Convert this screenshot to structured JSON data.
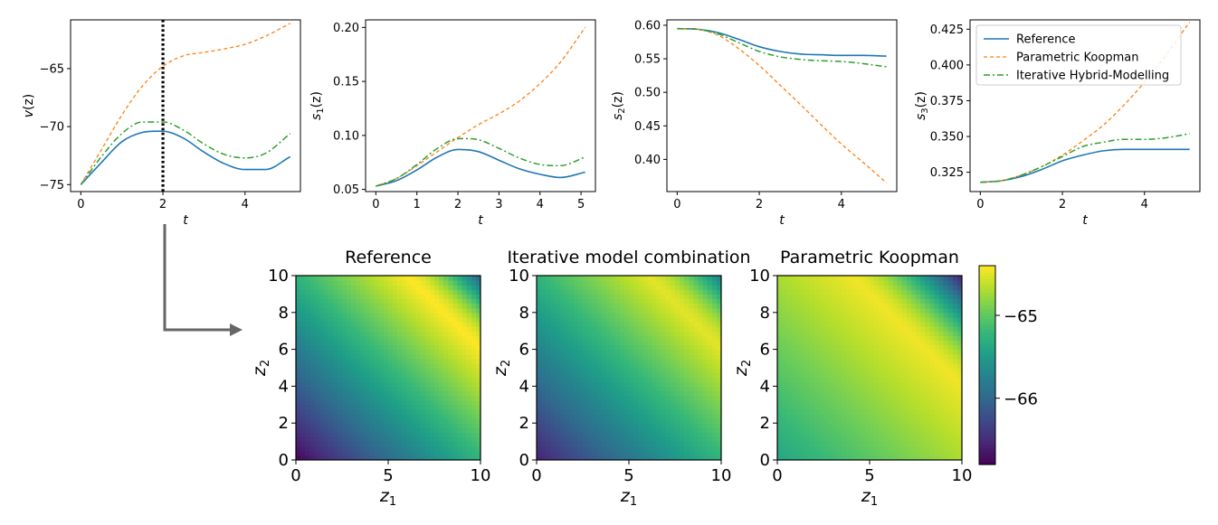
{
  "chart_data": [
    {
      "type": "line",
      "xlabel": "t",
      "ylabel_base": "v",
      "ylabel_arg": "(z)",
      "ylabel_sub": "",
      "xlim": [
        -0.25,
        5.35
      ],
      "ylim": [
        -75.6,
        -60.8
      ],
      "xticks": [
        0,
        2,
        4
      ],
      "yticks": [
        -75,
        -70,
        -65
      ],
      "vline_x": 2.0,
      "series": [
        {
          "name": "Reference",
          "x": [
            0,
            0.5,
            1,
            1.5,
            2,
            2.5,
            3,
            3.5,
            4,
            4.5,
            5.1
          ],
          "values": [
            -75,
            -73.1,
            -71.3,
            -70.5,
            -70.4,
            -71.0,
            -72.2,
            -73.2,
            -73.7,
            -73.7,
            -72.6
          ]
        },
        {
          "name": "Parametric Koopman",
          "x": [
            0,
            0.5,
            1,
            1.5,
            2,
            2.5,
            3,
            3.5,
            4,
            4.5,
            5.1
          ],
          "values": [
            -75,
            -72.0,
            -69.0,
            -66.5,
            -64.8,
            -63.9,
            -63.6,
            -63.3,
            -62.9,
            -62.2,
            -61.1
          ]
        },
        {
          "name": "Iterative Hybrid-Modelling",
          "x": [
            0,
            0.5,
            1,
            1.5,
            2,
            2.5,
            3,
            3.5,
            4,
            4.5,
            5.1
          ],
          "values": [
            -75,
            -72.6,
            -70.6,
            -69.6,
            -69.6,
            -70.3,
            -71.5,
            -72.4,
            -72.7,
            -72.3,
            -70.6
          ]
        }
      ]
    },
    {
      "type": "line",
      "xlabel": "t",
      "ylabel_base": "s",
      "ylabel_arg": "(z)",
      "ylabel_sub": "1",
      "xlim": [
        -0.25,
        5.35
      ],
      "ylim": [
        0.048,
        0.207
      ],
      "xticks": [
        0,
        1,
        2,
        3,
        4,
        5
      ],
      "yticks": [
        0.05,
        0.1,
        0.15,
        0.2
      ],
      "ytick_labels": [
        "0.05",
        "0.10",
        "0.15",
        "0.20"
      ],
      "series": [
        {
          "name": "Reference",
          "x": [
            0,
            0.5,
            1,
            1.5,
            2,
            2.5,
            3,
            3.5,
            4,
            4.5,
            5.1
          ],
          "values": [
            0.053,
            0.058,
            0.068,
            0.08,
            0.087,
            0.085,
            0.077,
            0.069,
            0.064,
            0.061,
            0.066
          ]
        },
        {
          "name": "Parametric Koopman",
          "x": [
            0,
            0.5,
            1,
            1.5,
            2,
            2.5,
            3,
            3.5,
            4,
            4.5,
            5.1
          ],
          "values": [
            0.053,
            0.06,
            0.072,
            0.085,
            0.098,
            0.11,
            0.12,
            0.132,
            0.148,
            0.168,
            0.2
          ]
        },
        {
          "name": "Iterative Hybrid-Modelling",
          "x": [
            0,
            0.5,
            1,
            1.5,
            2,
            2.5,
            3,
            3.5,
            4,
            4.5,
            5.1
          ],
          "values": [
            0.053,
            0.06,
            0.073,
            0.088,
            0.097,
            0.096,
            0.088,
            0.079,
            0.073,
            0.072,
            0.08
          ]
        }
      ]
    },
    {
      "type": "line",
      "xlabel": "t",
      "ylabel_base": "s",
      "ylabel_arg": "(z)",
      "ylabel_sub": "2",
      "xlim": [
        -0.25,
        5.35
      ],
      "ylim": [
        0.352,
        0.608
      ],
      "xticks": [
        0,
        2,
        4
      ],
      "yticks": [
        0.4,
        0.45,
        0.5,
        0.55,
        0.6
      ],
      "ytick_labels": [
        "0.40",
        "0.45",
        "0.50",
        "0.55",
        "0.60"
      ],
      "series": [
        {
          "name": "Reference",
          "x": [
            0,
            0.5,
            1,
            1.5,
            2,
            2.5,
            3,
            3.5,
            4,
            4.5,
            5.1
          ],
          "values": [
            0.595,
            0.594,
            0.589,
            0.579,
            0.568,
            0.561,
            0.557,
            0.556,
            0.555,
            0.555,
            0.554
          ]
        },
        {
          "name": "Parametric Koopman",
          "x": [
            0,
            0.5,
            1,
            1.5,
            2,
            2.5,
            3,
            3.5,
            4,
            4.5,
            5.1
          ],
          "values": [
            0.595,
            0.594,
            0.585,
            0.565,
            0.54,
            0.511,
            0.482,
            0.452,
            0.423,
            0.397,
            0.365
          ]
        },
        {
          "name": "Iterative Hybrid-Modelling",
          "x": [
            0,
            0.5,
            1,
            1.5,
            2,
            2.5,
            3,
            3.5,
            4,
            4.5,
            5.1
          ],
          "values": [
            0.595,
            0.594,
            0.587,
            0.574,
            0.561,
            0.553,
            0.549,
            0.547,
            0.546,
            0.543,
            0.538
          ]
        }
      ]
    },
    {
      "type": "line",
      "xlabel": "t",
      "ylabel_base": "s",
      "ylabel_arg": "(z)",
      "ylabel_sub": "3",
      "xlim": [
        -0.25,
        5.35
      ],
      "ylim": [
        0.3115,
        0.4315
      ],
      "xticks": [
        0,
        2,
        4
      ],
      "yticks": [
        0.325,
        0.35,
        0.375,
        0.4,
        0.425
      ],
      "ytick_labels": [
        "0.325",
        "0.350",
        "0.375",
        "0.400",
        "0.425"
      ],
      "legend_position": "top-left",
      "series": [
        {
          "name": "Reference",
          "x": [
            0,
            0.5,
            1,
            1.5,
            2,
            2.5,
            3,
            3.5,
            4,
            4.5,
            5.1
          ],
          "values": [
            0.318,
            0.319,
            0.322,
            0.327,
            0.333,
            0.337,
            0.34,
            0.341,
            0.341,
            0.341,
            0.341
          ]
        },
        {
          "name": "Parametric Koopman",
          "x": [
            0,
            0.5,
            1,
            1.5,
            2,
            2.5,
            3,
            3.5,
            4,
            4.5,
            5.1
          ],
          "values": [
            0.318,
            0.319,
            0.323,
            0.329,
            0.337,
            0.347,
            0.358,
            0.372,
            0.388,
            0.406,
            0.43
          ]
        },
        {
          "name": "Iterative Hybrid-Modelling",
          "x": [
            0,
            0.5,
            1,
            1.5,
            2,
            2.5,
            3,
            3.5,
            4,
            4.5,
            5.1
          ],
          "values": [
            0.318,
            0.319,
            0.323,
            0.329,
            0.336,
            0.343,
            0.346,
            0.348,
            0.348,
            0.349,
            0.352
          ]
        }
      ]
    },
    {
      "type": "heatmap",
      "title": "Reference",
      "xlabel": "z",
      "xlabel_sub": "1",
      "ylabel": "z",
      "ylabel_sub": "2",
      "xlim": [
        0,
        10
      ],
      "ylim": [
        0,
        10
      ],
      "xticks": [
        0,
        5,
        10
      ],
      "yticks": [
        0,
        2,
        4,
        6,
        8,
        10
      ],
      "value_range": [
        -66.8,
        -64.4
      ],
      "field": {
        "low_corner": -66.8,
        "ridge_value": -64.4,
        "ridge_sum": 16,
        "falloff": 0.24,
        "top_right_min": -66.1
      }
    },
    {
      "type": "heatmap",
      "title": "Iterative model combination",
      "xlabel": "z",
      "xlabel_sub": "1",
      "ylabel": "z",
      "ylabel_sub": "2",
      "xlim": [
        0,
        10
      ],
      "ylim": [
        0,
        10
      ],
      "xticks": [
        0,
        5,
        10
      ],
      "yticks": [
        0,
        2,
        4,
        6,
        8,
        10
      ],
      "value_range": [
        -66.8,
        -64.4
      ],
      "field": {
        "low_corner": -66.6,
        "ridge_value": -64.5,
        "ridge_sum": 16,
        "falloff": 0.22,
        "top_right_min": -65.8
      }
    },
    {
      "type": "heatmap",
      "title": "Parametric Koopman",
      "xlabel": "z",
      "xlabel_sub": "1",
      "ylabel": "z",
      "ylabel_sub": "2",
      "xlim": [
        0,
        10
      ],
      "ylim": [
        0,
        10
      ],
      "xticks": [
        0,
        5,
        10
      ],
      "yticks": [
        0,
        2,
        4,
        6,
        8,
        10
      ],
      "value_range": [
        -66.8,
        -64.4
      ],
      "field": {
        "low_corner": -65.4,
        "ridge_value": -64.45,
        "ridge_sum": 14,
        "falloff": 0.07,
        "top_right_min": -66.6
      }
    },
    {
      "type": "colorbar",
      "range": [
        -66.8,
        -64.4
      ],
      "ticks": [
        -66,
        -65
      ],
      "tick_labels": [
        "−66",
        "−65"
      ]
    }
  ],
  "legend": {
    "entries": [
      "Reference",
      "Parametric Koopman",
      "Iterative Hybrid-Modelling"
    ]
  },
  "colors": {
    "reference": "#1f77b4",
    "parametric_koopman": "#ff7f0e",
    "iterative": "#2ca02c",
    "vline": "#000000",
    "arrow": "#666666"
  },
  "icons": {
    "connector": "down-right-arrow-icon"
  }
}
